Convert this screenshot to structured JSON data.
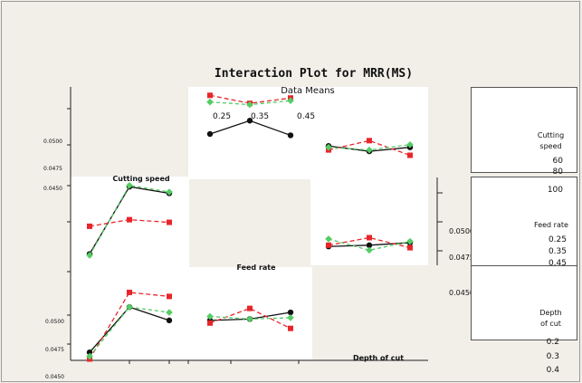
{
  "title": "Interaction Plot for MRR(MS)",
  "subtitle": "Data Means",
  "colors": {
    "series1": "#111111",
    "series2": "#e8262a",
    "series3": "#55cc66",
    "panel": "#ffffff",
    "background": "#f1efe8"
  },
  "factors": [
    {
      "name": "Cutting speed",
      "levels": [
        "60",
        "80",
        "100"
      ]
    },
    {
      "name": "Feed rate",
      "levels": [
        "0.25",
        "0.35",
        "0.45"
      ]
    },
    {
      "name": "Depth of cut",
      "levels": [
        "0.2",
        "0.3",
        "0.4"
      ]
    }
  ],
  "y_tick_labels": {
    "row1": [
      "0.0500",
      "0.0475",
      "0.0450"
    ],
    "row2": [
      "0.0500",
      "0.0475",
      "0.0450"
    ],
    "row3": [
      "0.0500",
      "0.0475",
      "0.0450"
    ]
  },
  "x_tick_labels": {
    "feed_rate": [
      "0.25",
      "0.35",
      "0.45"
    ]
  },
  "legends": [
    {
      "title_line1": "Cutting",
      "title_line2": "speed",
      "levels": [
        "60",
        "80",
        "100"
      ]
    },
    {
      "title_line1": "Feed rate",
      "title_line2": "",
      "levels": [
        "0.25",
        "0.35",
        "0.45"
      ]
    },
    {
      "title_line1": "Depth",
      "title_line2": "of cut",
      "levels": [
        "0.2",
        "0.3",
        "0.4"
      ]
    }
  ],
  "chart_data": {
    "type": "line",
    "title": "Interaction Plot for MRR(MS)",
    "subtitle": "Data Means",
    "ylim": [
      0.044,
      0.051
    ],
    "panels": [
      {
        "row": "Feed rate",
        "col": "Cutting speed",
        "x": [
          "0.25",
          "0.35",
          "0.45"
        ],
        "series": [
          {
            "name": "60",
            "values": [
              0.0474,
              0.0484,
              0.0473
            ]
          },
          {
            "name": "80",
            "values": [
              0.0503,
              0.0497,
              0.0501
            ]
          },
          {
            "name": "100",
            "values": [
              0.0498,
              0.0496,
              0.0499
            ]
          }
        ]
      },
      {
        "row": "Depth of cut",
        "col": "Cutting speed",
        "x": [
          "0.2",
          "0.3",
          "0.4"
        ],
        "series": [
          {
            "name": "60",
            "values": [
              0.0465,
              0.0461,
              0.0464
            ]
          },
          {
            "name": "80",
            "values": [
              0.0462,
              0.0469,
              0.0458
            ]
          },
          {
            "name": "100",
            "values": [
              0.0464,
              0.0462,
              0.0466
            ]
          }
        ]
      },
      {
        "row": "Cutting speed",
        "col": "Feed rate",
        "x": [
          "60",
          "80",
          "100"
        ],
        "series": [
          {
            "name": "0.25",
            "values": [
              0.0452,
              0.0503,
              0.0498
            ]
          },
          {
            "name": "0.35",
            "values": [
              0.0473,
              0.0478,
              0.0476
            ]
          },
          {
            "name": "0.45",
            "values": [
              0.0451,
              0.0504,
              0.0499
            ]
          }
        ]
      },
      {
        "row": "Depth of cut",
        "col": "Feed rate",
        "x": [
          "0.2",
          "0.3",
          "0.4"
        ],
        "series": [
          {
            "name": "0.25",
            "values": [
              0.0455,
              0.0456,
              0.0458
            ]
          },
          {
            "name": "0.35",
            "values": [
              0.0456,
              0.0462,
              0.0454
            ]
          },
          {
            "name": "0.45",
            "values": [
              0.0461,
              0.0452,
              0.0459
            ]
          }
        ]
      },
      {
        "row": "Cutting speed",
        "col": "Depth of cut",
        "x": [
          "60",
          "80",
          "100"
        ],
        "series": [
          {
            "name": "0.2",
            "values": [
              0.0446,
              0.048,
              0.047
            ]
          },
          {
            "name": "0.3",
            "values": [
              0.0441,
              0.0491,
              0.0488
            ]
          },
          {
            "name": "0.4",
            "values": [
              0.0443,
              0.048,
              0.0476
            ]
          }
        ]
      },
      {
        "row": "Feed rate",
        "col": "Depth of cut",
        "x": [
          "0.25",
          "0.35",
          "0.45"
        ],
        "series": [
          {
            "name": "0.2",
            "values": [
              0.047,
              0.0471,
              0.0476
            ]
          },
          {
            "name": "0.3",
            "values": [
              0.0468,
              0.0479,
              0.0464
            ]
          },
          {
            "name": "0.4",
            "values": [
              0.0473,
              0.0471,
              0.0472
            ]
          }
        ]
      }
    ]
  }
}
